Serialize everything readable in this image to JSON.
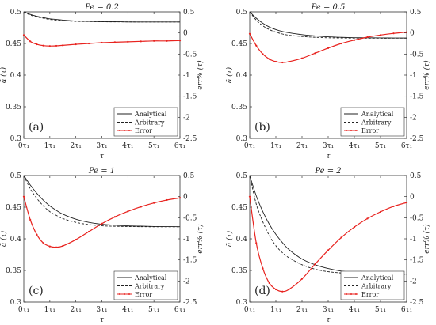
{
  "chart_data": [
    {
      "type": "line",
      "panel_label": "(a)",
      "title": "Pe = 0.2",
      "xlabel": "τ",
      "ylabel_left": "ā (τ)",
      "ylabel_right": "err% (τ)",
      "xlim": [
        0,
        6
      ],
      "ylim_left": [
        0.3,
        0.5
      ],
      "ylim_right": [
        -2.5,
        0.5
      ],
      "x_ticks": [
        0,
        1,
        2,
        3,
        4,
        5,
        6
      ],
      "x_tick_labels": [
        "0τ₁",
        "1τ₁",
        "2τ₁",
        "3τ₁",
        "4τ₁",
        "5τ₁",
        "6τ₁"
      ],
      "y_ticks_left": [
        0.3,
        0.35,
        0.4,
        0.45,
        0.5
      ],
      "y_tick_labels_left": [
        "0.3",
        "0.35",
        "0.4",
        "0.45",
        "0.5"
      ],
      "y_ticks_right": [
        -2.5,
        -2,
        -1.5,
        -1,
        -0.5,
        0,
        0.5
      ],
      "y_tick_labels_right": [
        "-2.5",
        "-2",
        "-1.5",
        "-1",
        "-0.5",
        "0",
        "0.5"
      ],
      "legend": {
        "placement": "bottom-right",
        "entries": [
          "Analytical",
          "Arbitrary",
          "Error"
        ]
      },
      "x": [
        0,
        0.25,
        0.5,
        0.75,
        1,
        1.25,
        1.5,
        2,
        2.5,
        3,
        3.5,
        4,
        4.5,
        5,
        5.5,
        6
      ],
      "series": [
        {
          "name": "Analytical",
          "axis": "left",
          "style": "solid",
          "color": "#222222",
          "values": [
            0.5,
            0.496,
            0.493,
            0.491,
            0.489,
            0.488,
            0.487,
            0.4855,
            0.485,
            0.4845,
            0.4845,
            0.484,
            0.484,
            0.484,
            0.484,
            0.484
          ]
        },
        {
          "name": "Arbitrary",
          "axis": "left",
          "style": "dashed",
          "color": "#222222",
          "values": [
            0.5,
            0.495,
            0.492,
            0.49,
            0.488,
            0.487,
            0.486,
            0.485,
            0.4847,
            0.4843,
            0.4842,
            0.4841,
            0.484,
            0.484,
            0.484,
            0.484
          ]
        },
        {
          "name": "Error",
          "axis": "right",
          "style": "solid-markers",
          "color": "#e8231f",
          "values": [
            -0.05,
            -0.2,
            -0.27,
            -0.3,
            -0.31,
            -0.305,
            -0.295,
            -0.27,
            -0.25,
            -0.23,
            -0.22,
            -0.21,
            -0.2,
            -0.19,
            -0.19,
            -0.18
          ]
        }
      ]
    },
    {
      "type": "line",
      "panel_label": "(b)",
      "title": "Pe = 0.5",
      "xlabel": "τ",
      "ylabel_left": "ā (τ)",
      "ylabel_right": "err% (τ)",
      "xlim": [
        0,
        6
      ],
      "ylim_left": [
        0.3,
        0.5
      ],
      "ylim_right": [
        -2.5,
        0.5
      ],
      "x_ticks": [
        0,
        1,
        2,
        3,
        4,
        5,
        6
      ],
      "x_tick_labels": [
        "0τ₁",
        "1τ₁",
        "2τ₁",
        "3τ₁",
        "4τ₁",
        "5τ₁",
        "6τ₁"
      ],
      "y_ticks_left": [
        0.3,
        0.35,
        0.4,
        0.45,
        0.5
      ],
      "y_tick_labels_left": [
        "0.3",
        "0.35",
        "0.4",
        "0.45",
        "0.5"
      ],
      "y_ticks_right": [
        -2.5,
        -2,
        -1.5,
        -1,
        -0.5,
        0,
        0.5
      ],
      "y_tick_labels_right": [
        "-2.5",
        "-2",
        "-1.5",
        "-1",
        "-0.5",
        "0",
        "0.5"
      ],
      "legend": {
        "placement": "bottom-right",
        "entries": [
          "Analytical",
          "Arbitrary",
          "Error"
        ]
      },
      "x": [
        0,
        0.25,
        0.5,
        0.75,
        1,
        1.25,
        1.5,
        2,
        2.5,
        3,
        3.5,
        4,
        4.5,
        5,
        5.5,
        6
      ],
      "series": [
        {
          "name": "Analytical",
          "axis": "left",
          "style": "solid",
          "color": "#222222",
          "values": [
            0.5,
            0.49,
            0.482,
            0.476,
            0.472,
            0.469,
            0.467,
            0.464,
            0.462,
            0.4605,
            0.4597,
            0.4592,
            0.459,
            0.4588,
            0.4587,
            0.4586
          ]
        },
        {
          "name": "Arbitrary",
          "axis": "left",
          "style": "dashed",
          "color": "#222222",
          "values": [
            0.5,
            0.487,
            0.478,
            0.472,
            0.468,
            0.465,
            0.463,
            0.461,
            0.4598,
            0.459,
            0.4587,
            0.4585,
            0.4584,
            0.4583,
            0.4583,
            0.4583
          ]
        },
        {
          "name": "Error",
          "axis": "right",
          "style": "solid-markers",
          "color": "#e8231f",
          "values": [
            -0.02,
            -0.3,
            -0.5,
            -0.62,
            -0.68,
            -0.7,
            -0.68,
            -0.6,
            -0.48,
            -0.36,
            -0.25,
            -0.17,
            -0.1,
            -0.05,
            -0.01,
            0.02
          ]
        }
      ]
    },
    {
      "type": "line",
      "panel_label": "(c)",
      "title": "Pe = 1",
      "xlabel": "τ",
      "ylabel_left": "ā (τ)",
      "ylabel_right": "err% (τ)",
      "xlim": [
        0,
        6
      ],
      "ylim_left": [
        0.3,
        0.5
      ],
      "ylim_right": [
        -2.5,
        0.5
      ],
      "x_ticks": [
        0,
        1,
        2,
        3,
        4,
        5,
        6
      ],
      "x_tick_labels": [
        "0τ₁",
        "1τ₁",
        "2τ₁",
        "3τ₁",
        "4τ₁",
        "5τ₁",
        "6τ₁"
      ],
      "y_ticks_left": [
        0.3,
        0.35,
        0.4,
        0.45,
        0.5
      ],
      "y_tick_labels_left": [
        "0.3",
        "0.35",
        "0.4",
        "0.45",
        "0.5"
      ],
      "y_ticks_right": [
        -2.5,
        -2,
        -1.5,
        -1,
        -0.5,
        0,
        0.5
      ],
      "y_tick_labels_right": [
        "-2.5",
        "-2",
        "-1.5",
        "-1",
        "-0.5",
        "0",
        "0.5"
      ],
      "legend": {
        "placement": "bottom-right",
        "entries": [
          "Analytical",
          "Arbitrary",
          "Error"
        ]
      },
      "x": [
        0,
        0.25,
        0.5,
        0.75,
        1,
        1.25,
        1.5,
        2,
        2.5,
        3,
        3.5,
        4,
        4.5,
        5,
        5.5,
        6
      ],
      "series": [
        {
          "name": "Analytical",
          "axis": "left",
          "style": "solid",
          "color": "#222222",
          "values": [
            0.5,
            0.485,
            0.472,
            0.461,
            0.452,
            0.445,
            0.439,
            0.431,
            0.426,
            0.423,
            0.4215,
            0.4205,
            0.42,
            0.4195,
            0.4193,
            0.4192
          ]
        },
        {
          "name": "Arbitrary",
          "axis": "left",
          "style": "dashed",
          "color": "#222222",
          "values": [
            0.5,
            0.479,
            0.464,
            0.452,
            0.443,
            0.437,
            0.432,
            0.426,
            0.4225,
            0.4205,
            0.4198,
            0.4194,
            0.4192,
            0.419,
            0.419,
            0.419
          ]
        },
        {
          "name": "Error",
          "axis": "right",
          "style": "solid-markers",
          "color": "#e8231f",
          "values": [
            0,
            -0.55,
            -0.9,
            -1.1,
            -1.18,
            -1.2,
            -1.17,
            -1.02,
            -0.83,
            -0.64,
            -0.48,
            -0.35,
            -0.24,
            -0.15,
            -0.08,
            -0.03
          ]
        }
      ]
    },
    {
      "type": "line",
      "panel_label": "(d)",
      "title": "Pe = 2",
      "xlabel": "τ",
      "ylabel_left": "ā (τ)",
      "ylabel_right": "err% (τ)",
      "xlim": [
        0,
        6
      ],
      "ylim_left": [
        0.3,
        0.5
      ],
      "ylim_right": [
        -2.5,
        0.5
      ],
      "x_ticks": [
        0,
        1,
        2,
        3,
        4,
        5,
        6
      ],
      "x_tick_labels": [
        "0τ₁",
        "1τ₁",
        "2τ₁",
        "3τ₁",
        "4τ₁",
        "5τ₁",
        "6τ₁"
      ],
      "y_ticks_left": [
        0.3,
        0.35,
        0.4,
        0.45,
        0.5
      ],
      "y_tick_labels_left": [
        "0.3",
        "0.35",
        "0.4",
        "0.45",
        "0.5"
      ],
      "y_ticks_right": [
        -2.5,
        -2,
        -1.5,
        -1,
        -0.5,
        0,
        0.5
      ],
      "y_tick_labels_right": [
        "-2.5",
        "-2",
        "-1.5",
        "-1",
        "-0.5",
        "0",
        "0.5"
      ],
      "legend": {
        "placement": "bottom-right",
        "entries": [
          "Analytical",
          "Arbitrary",
          "Error"
        ]
      },
      "x": [
        0,
        0.25,
        0.5,
        0.75,
        1,
        1.25,
        1.5,
        2,
        2.5,
        3,
        3.5,
        4,
        4.5,
        5,
        5.5,
        6
      ],
      "series": [
        {
          "name": "Analytical",
          "axis": "left",
          "style": "solid",
          "color": "#222222",
          "values": [
            0.5,
            0.468,
            0.443,
            0.423,
            0.407,
            0.394,
            0.383,
            0.368,
            0.359,
            0.353,
            0.349,
            0.347,
            0.3455,
            0.3448,
            0.3444,
            0.3442
          ]
        },
        {
          "name": "Arbitrary",
          "axis": "left",
          "style": "dashed",
          "color": "#222222",
          "values": [
            0.5,
            0.455,
            0.427,
            0.405,
            0.389,
            0.378,
            0.37,
            0.359,
            0.352,
            0.348,
            0.346,
            0.345,
            0.3444,
            0.3442,
            0.344,
            0.344
          ]
        },
        {
          "name": "Error",
          "axis": "right",
          "style": "solid-markers",
          "color": "#e8231f",
          "values": [
            0,
            -1.1,
            -1.7,
            -2.05,
            -2.2,
            -2.25,
            -2.2,
            -1.95,
            -1.6,
            -1.27,
            -0.97,
            -0.72,
            -0.52,
            -0.36,
            -0.23,
            -0.14
          ]
        }
      ]
    }
  ]
}
